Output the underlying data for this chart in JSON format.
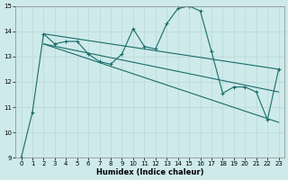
{
  "xlabel": "Humidex (Indice chaleur)",
  "bg_color": "#ceeaea",
  "line_color": "#1a6b6b",
  "grid_color": "#b8d8d8",
  "xlim": [
    -0.5,
    23.5
  ],
  "ylim": [
    9,
    15
  ],
  "xticks": [
    0,
    1,
    2,
    3,
    4,
    5,
    6,
    7,
    8,
    9,
    10,
    11,
    12,
    13,
    14,
    15,
    16,
    17,
    18,
    19,
    20,
    21,
    22,
    23
  ],
  "yticks": [
    9,
    10,
    11,
    12,
    13,
    14,
    15
  ],
  "line1_x": [
    0,
    1,
    2,
    3,
    4,
    5,
    6,
    7,
    8,
    9,
    10,
    11,
    12,
    13,
    14,
    15,
    16,
    17,
    18,
    19,
    20,
    21,
    22,
    23
  ],
  "line1_y": [
    9.0,
    10.8,
    13.9,
    13.5,
    13.6,
    13.6,
    13.1,
    12.8,
    12.7,
    13.1,
    14.1,
    13.4,
    13.3,
    14.3,
    14.9,
    15.0,
    14.8,
    13.2,
    11.55,
    11.8,
    11.8,
    11.6,
    10.5,
    12.5
  ],
  "line2_x": [
    2,
    23
  ],
  "line2_y": [
    13.9,
    12.5
  ],
  "line3_x": [
    2,
    23
  ],
  "line3_y": [
    13.5,
    11.6
  ],
  "line4_x": [
    2,
    23
  ],
  "line4_y": [
    13.5,
    10.4
  ]
}
